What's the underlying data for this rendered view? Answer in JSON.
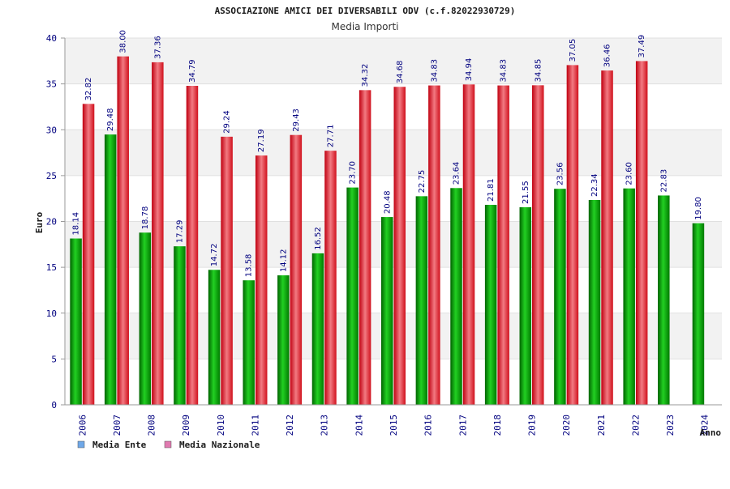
{
  "chart_data": {
    "type": "bar",
    "title": "ASSOCIAZIONE AMICI DEI DIVERSABILI ODV (c.f.82022930729)",
    "subtitle": "Media Importi",
    "ylabel": "Euro",
    "xlabel": "Anno",
    "ylim": [
      0,
      40
    ],
    "yticks": [
      0,
      5,
      10,
      15,
      20,
      25,
      30,
      35,
      40
    ],
    "categories": [
      "2006",
      "2007",
      "2008",
      "2009",
      "2010",
      "2011",
      "2012",
      "2013",
      "2014",
      "2015",
      "2016",
      "2017",
      "2018",
      "2019",
      "2020",
      "2021",
      "2022",
      "2023",
      "2024"
    ],
    "series": [
      {
        "name": "Media Ente",
        "legend_color": "#6fa8e8",
        "color": "#00a000",
        "values": [
          18.14,
          29.48,
          18.78,
          17.29,
          14.72,
          13.58,
          14.12,
          16.52,
          23.7,
          20.48,
          22.75,
          23.64,
          21.81,
          21.55,
          23.56,
          22.34,
          23.6,
          22.83,
          19.8
        ],
        "labels": [
          "18.14",
          "29.48",
          "18.78",
          "17.29",
          "14.72",
          "13.58",
          "14.12",
          "16.52",
          "23.70",
          "20.48",
          "22.75",
          "23.64",
          "21.81",
          "21.55",
          "23.56",
          "22.34",
          "23.60",
          "22.83",
          "19.80"
        ]
      },
      {
        "name": "Media Nazionale",
        "legend_color": "#e07ab0",
        "color": "#e0202a",
        "values": [
          32.82,
          38.0,
          37.36,
          34.79,
          29.24,
          27.19,
          29.43,
          27.71,
          34.32,
          34.68,
          34.83,
          34.94,
          34.83,
          34.85,
          37.05,
          36.46,
          37.49,
          null,
          null
        ],
        "labels": [
          "32.82",
          "38.00",
          "37.36",
          "34.79",
          "29.24",
          "27.19",
          "29.43",
          "27.71",
          "34.32",
          "34.68",
          "34.83",
          "34.94",
          "34.83",
          "34.85",
          "37.05",
          "36.46",
          "37.49",
          null,
          null
        ]
      }
    ],
    "grid": true,
    "legend": "bottom-left"
  }
}
